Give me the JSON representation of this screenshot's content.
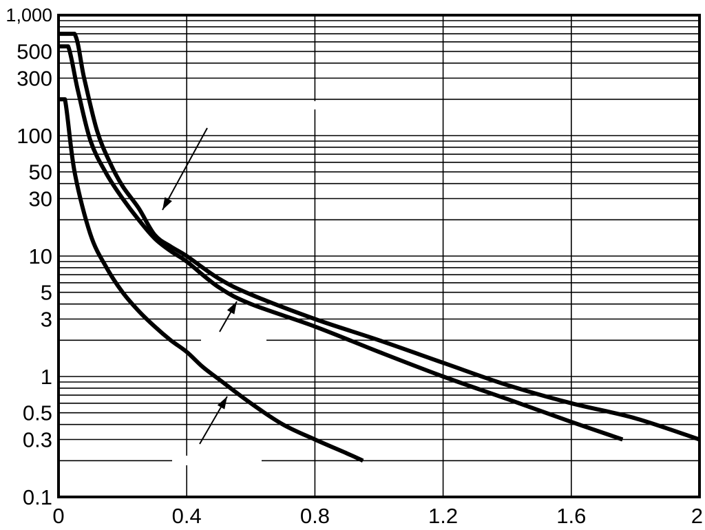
{
  "chart_data": {
    "type": "line",
    "title": "",
    "xlabel": "",
    "ylabel": "",
    "xlim": [
      0,
      2
    ],
    "ylim": [
      0.1,
      1000
    ],
    "y_scale": "log",
    "grid": true,
    "legend": "none",
    "line_color": "#000000",
    "x_ticks": [
      {
        "value": 0,
        "label": "0"
      },
      {
        "value": 0.4,
        "label": "0.4"
      },
      {
        "value": 0.8,
        "label": "0.8"
      },
      {
        "value": 1.2,
        "label": "1.2"
      },
      {
        "value": 1.6,
        "label": "1.6"
      },
      {
        "value": 2,
        "label": "2"
      }
    ],
    "y_ticks": [
      {
        "value": 1000,
        "label": "1,000"
      },
      {
        "value": 500,
        "label": "500"
      },
      {
        "value": 300,
        "label": "300"
      },
      {
        "value": 100,
        "label": "100"
      },
      {
        "value": 50,
        "label": "50"
      },
      {
        "value": 30,
        "label": "30"
      },
      {
        "value": 10,
        "label": "10"
      },
      {
        "value": 5,
        "label": "5"
      },
      {
        "value": 3,
        "label": "3"
      },
      {
        "value": 1,
        "label": "1"
      },
      {
        "value": 0.5,
        "label": "0.5"
      },
      {
        "value": 0.3,
        "label": "0.3"
      },
      {
        "value": 0.1,
        "label": "0.1"
      }
    ],
    "series": [
      {
        "x": [
          0.0,
          0.05,
          0.08,
          0.12,
          0.16,
          0.2,
          0.25,
          0.3,
          0.35,
          0.4,
          0.5,
          0.6,
          0.8,
          1.0,
          1.2,
          1.4,
          1.6,
          1.8,
          2.0
        ],
        "y": [
          700,
          700,
          300,
          110,
          60,
          38,
          25,
          15,
          12,
          10,
          6.5,
          4.8,
          3.0,
          2.0,
          1.3,
          0.85,
          0.6,
          0.45,
          0.3
        ]
      },
      {
        "x": [
          0.0,
          0.03,
          0.06,
          0.1,
          0.15,
          0.2,
          0.25,
          0.3,
          0.35,
          0.4,
          0.5,
          0.6,
          0.8,
          1.0,
          1.2,
          1.4,
          1.6,
          1.76
        ],
        "y": [
          550,
          550,
          240,
          90,
          48,
          30,
          20,
          14,
          11,
          9,
          5.5,
          4.0,
          2.6,
          1.6,
          1.0,
          0.65,
          0.42,
          0.3
        ]
      },
      {
        "x": [
          0.0,
          0.02,
          0.05,
          0.1,
          0.15,
          0.2,
          0.25,
          0.3,
          0.35,
          0.4,
          0.45,
          0.5,
          0.6,
          0.7,
          0.8,
          0.9,
          0.95
        ],
        "y": [
          200,
          200,
          50,
          15,
          8,
          5,
          3.5,
          2.6,
          2.0,
          1.6,
          1.2,
          0.95,
          0.6,
          0.4,
          0.3,
          0.23,
          0.2
        ]
      }
    ]
  }
}
